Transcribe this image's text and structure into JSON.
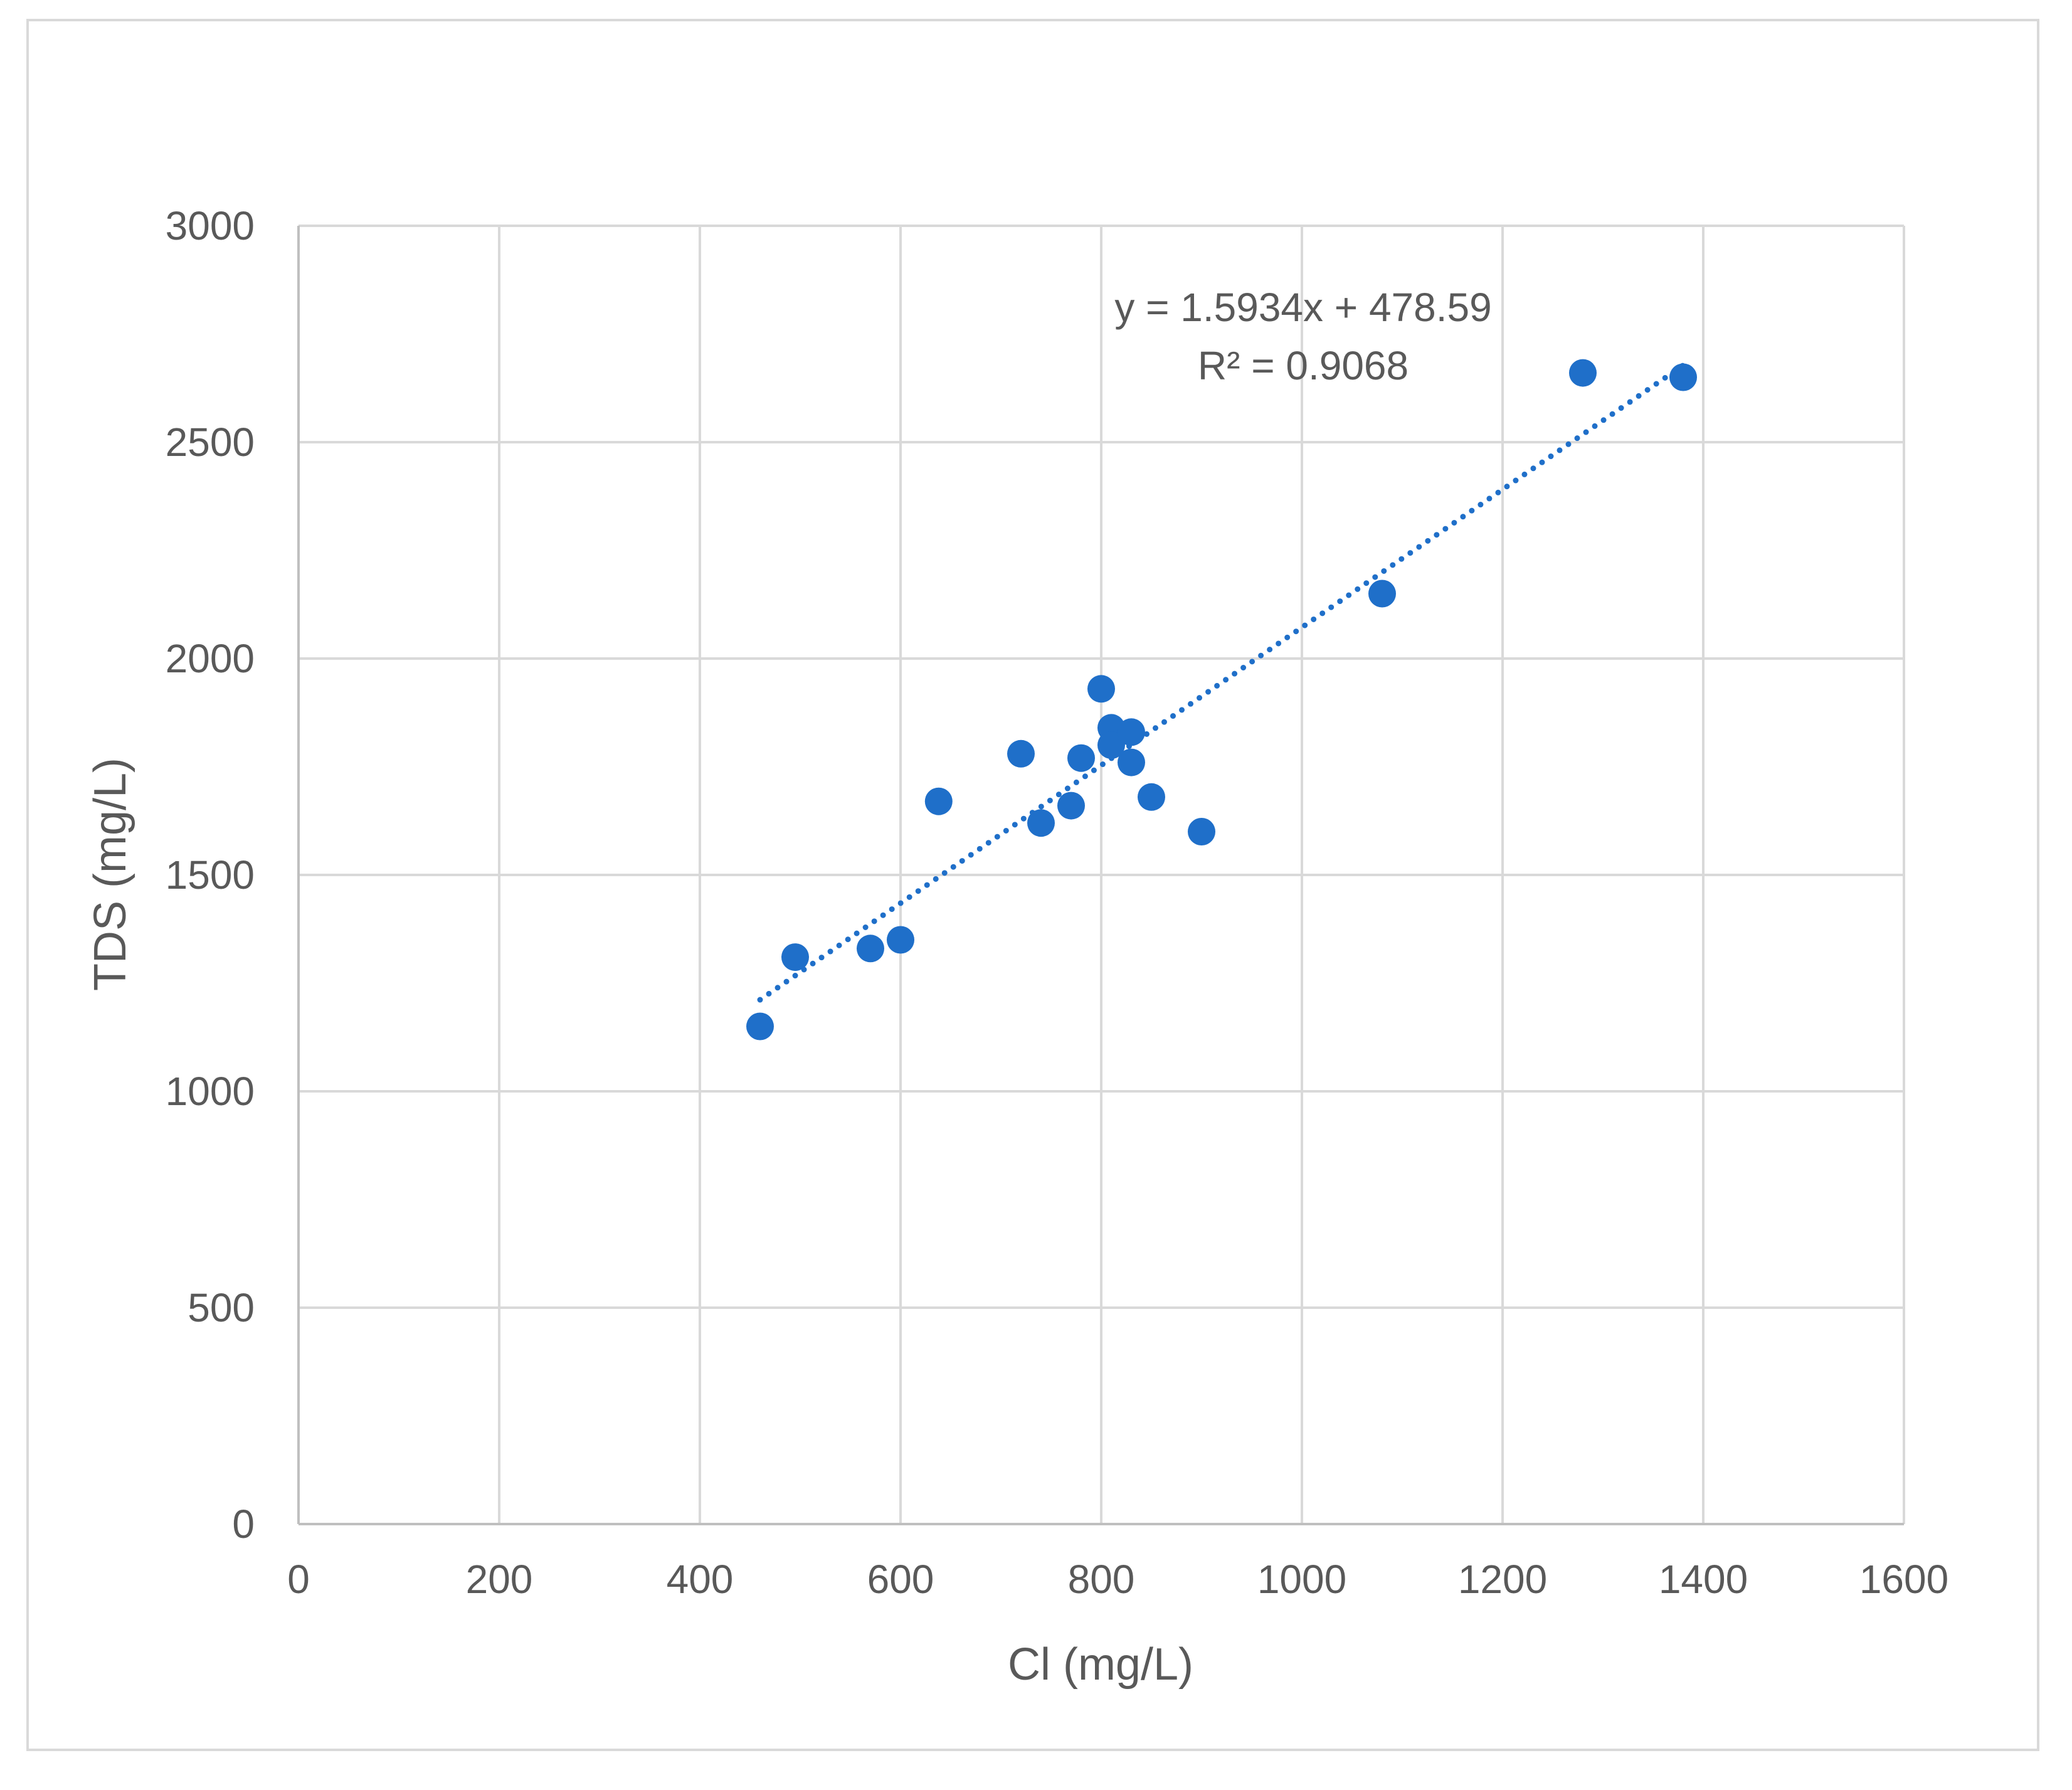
{
  "chart_data": {
    "type": "scatter",
    "xlabel": "Cl (mg/L)",
    "ylabel": "TDS (mg/L)",
    "xlim": [
      0,
      1600
    ],
    "ylim": [
      0,
      3000
    ],
    "x_ticks": [
      "0",
      "200",
      "400",
      "600",
      "800",
      "1000",
      "1200",
      "1400",
      "1600"
    ],
    "y_ticks": [
      "0",
      "500",
      "1000",
      "1500",
      "2000",
      "2500",
      "3000"
    ],
    "grid": true,
    "legend": "none",
    "series": [
      {
        "color": "#1f6fc9",
        "points": [
          {
            "x": 460,
            "y": 1150
          },
          {
            "x": 495,
            "y": 1310
          },
          {
            "x": 570,
            "y": 1330
          },
          {
            "x": 600,
            "y": 1350
          },
          {
            "x": 638,
            "y": 1670
          },
          {
            "x": 720,
            "y": 1780
          },
          {
            "x": 740,
            "y": 1620
          },
          {
            "x": 770,
            "y": 1660
          },
          {
            "x": 780,
            "y": 1770
          },
          {
            "x": 800,
            "y": 1930
          },
          {
            "x": 810,
            "y": 1840
          },
          {
            "x": 810,
            "y": 1800
          },
          {
            "x": 830,
            "y": 1830
          },
          {
            "x": 830,
            "y": 1760
          },
          {
            "x": 850,
            "y": 1680
          },
          {
            "x": 900,
            "y": 1600
          },
          {
            "x": 1080,
            "y": 2150
          },
          {
            "x": 1280,
            "y": 2660
          },
          {
            "x": 1380,
            "y": 2650
          }
        ]
      }
    ],
    "trendline": {
      "type": "linear",
      "slope": 1.5934,
      "intercept": 478.59,
      "x_range": [
        460,
        1380
      ],
      "style": "dotted",
      "color": "#1f6fc9",
      "equation_label": "y = 1.5934x + 478.59",
      "r2_label": "R² = 0.9068"
    }
  }
}
